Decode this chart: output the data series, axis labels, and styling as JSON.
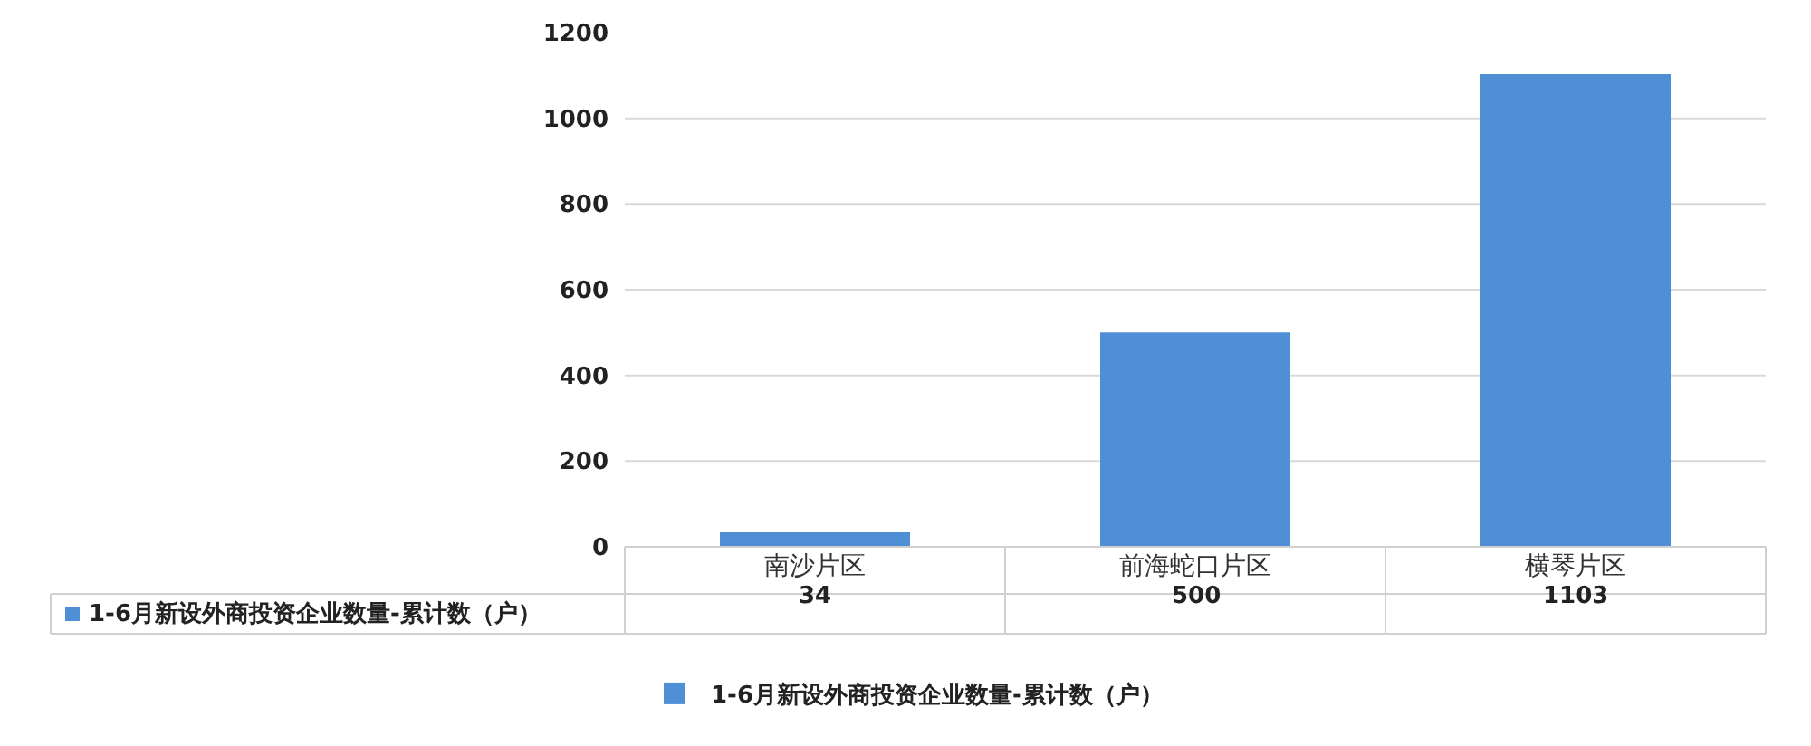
{
  "chart_data": {
    "type": "bar",
    "categories": [
      "南沙片区",
      "前海蛇口片区",
      "横琴片区"
    ],
    "series": [
      {
        "name": "1-6月新设外商投资企业数量-累计数（户）",
        "color": "#4f8fd6",
        "values": [
          34,
          500,
          1103
        ]
      }
    ],
    "ylim": [
      0,
      1200
    ],
    "yticks": [
      0,
      200,
      400,
      600,
      800,
      1000,
      1200
    ],
    "grid": "y",
    "legend": "bottom",
    "data_labels": true
  }
}
